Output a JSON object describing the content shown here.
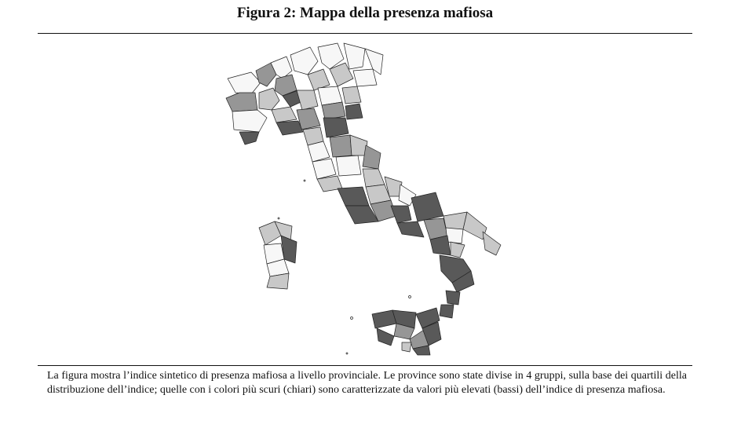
{
  "title": "Figura 2: Mappa della presenza mafiosa",
  "caption": "La figura mostra l’indice sintetico di presenza mafiosa a livello provinciale. Le province sono state divise in 4 gruppi, sulla base dei quartili della distribuzione dell’indice; quelle con i colori più scuri (chiari) sono caratterizzate da valori più elevati (bassi) dell’indice di presenza mafiosa.",
  "legend_classes": {
    "q1": "#f7f7f7",
    "q2": "#c8c8c8",
    "q3": "#969696",
    "q4": "#595959"
  }
}
